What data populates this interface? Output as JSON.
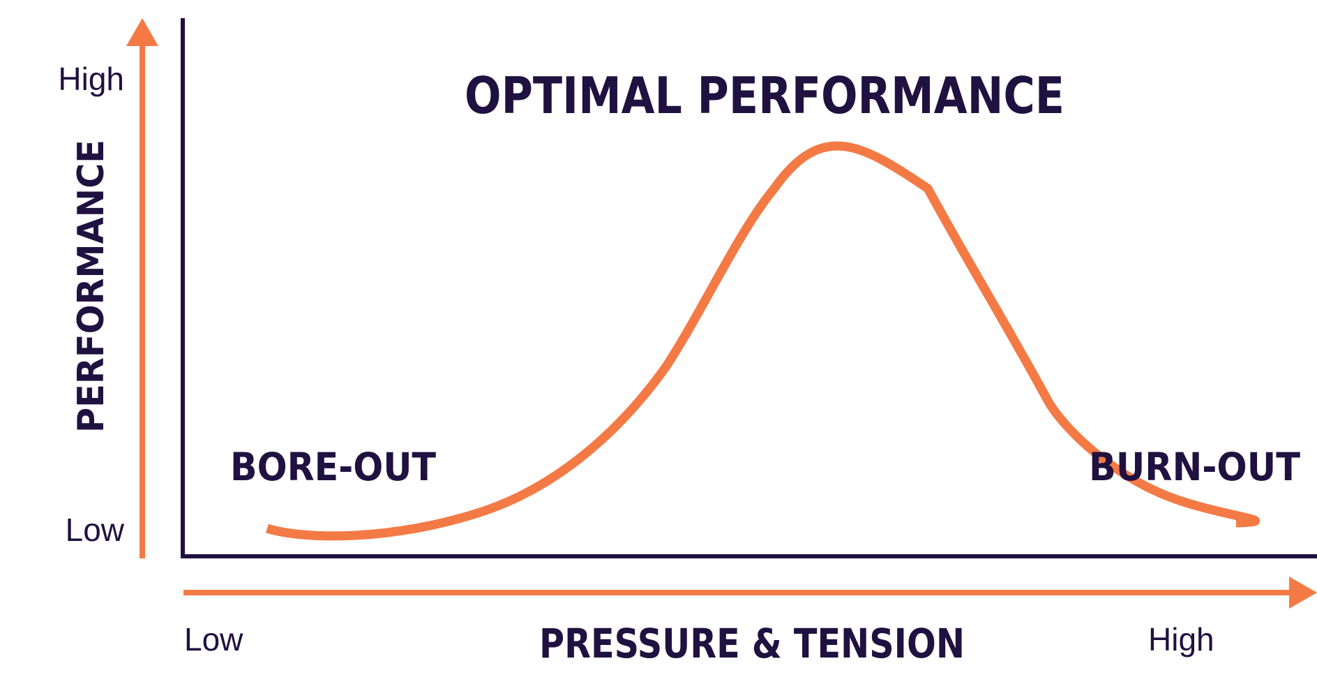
{
  "title": "OPTIMAL PERFORMANCE",
  "y_axis": {
    "label": "PERFORMANCE",
    "high_label": "High",
    "low_label": "Low"
  },
  "x_axis": {
    "label": "PRESSURE & TENSION",
    "low_label": "Low",
    "high_label": "High"
  },
  "zones": {
    "left": "BORE-OUT",
    "right": "BURN-OUT"
  },
  "colors": {
    "accent": "#f47a45",
    "ink": "#1f1140",
    "background": "#ffffff"
  }
}
